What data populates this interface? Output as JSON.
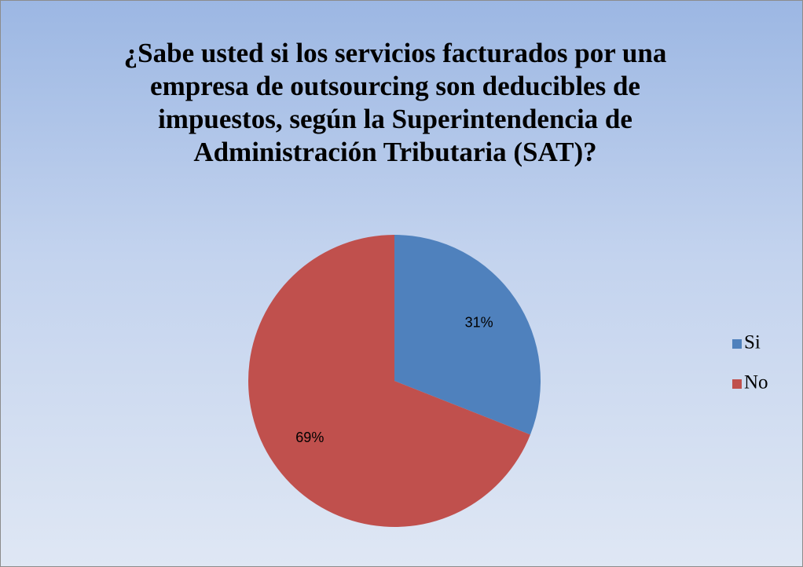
{
  "chart_data": {
    "type": "pie",
    "title": "¿Sabe usted si los servicios facturados por una empresa de outsourcing son deducibles de impuestos, según la Superintendencia de Administración Tributaria (SAT)?",
    "categories": [
      "Si",
      "No"
    ],
    "values": [
      31,
      69
    ],
    "value_labels": [
      "31%",
      "69%"
    ],
    "colors": [
      "#4f81bd",
      "#c0504d"
    ],
    "legend": "right"
  }
}
